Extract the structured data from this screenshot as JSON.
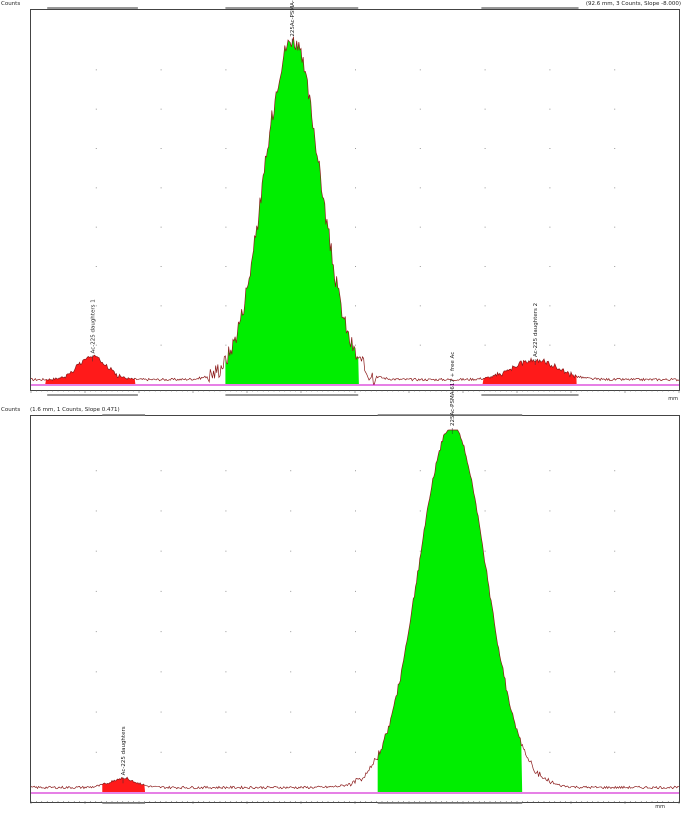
{
  "chart_data": [
    {
      "type": "area",
      "ylabel": "Counts",
      "xlabel": "mm",
      "cursor_info": "(92.6 mm, 3 Counts, Slope -8.000)",
      "xlim": [
        0,
        100
      ],
      "ylim": [
        0,
        100
      ],
      "grid": "dotted",
      "colors": {
        "trace": "#8b1a1a",
        "baseline": "#cc00cc",
        "roi_major": "#00ee00",
        "roi_minor": "#ff1a1a"
      },
      "peaks": [
        {
          "label": "Ac-225 daughters 1",
          "center": 9.5,
          "width": 2.2,
          "height": 6.5,
          "roi": [
            2.2,
            16.1
          ],
          "color": "roi_minor",
          "noise": 1.2
        },
        {
          "label": "225Ac-PSMA-617",
          "center": 40.3,
          "width": 4.3,
          "height": 96,
          "roi": [
            30.0,
            50.6
          ],
          "color": "roi_major",
          "noise": 5
        },
        {
          "label": "Ac-225 daughters 2",
          "center": 77.8,
          "width": 3.4,
          "height": 5.5,
          "roi": [
            69.7,
            84.2
          ],
          "color": "roi_minor",
          "noise": 1.2
        }
      ],
      "ruler_top": [
        [
          2.5,
          16.5
        ],
        [
          30.0,
          50.5
        ],
        [
          69.5,
          84.5
        ]
      ],
      "ruler_bottom": [
        [
          2.5,
          16.5
        ],
        [
          30.0,
          50.5
        ],
        [
          69.5,
          84.5
        ]
      ]
    },
    {
      "type": "area",
      "ylabel": "Counts",
      "xlabel": "mm",
      "cursor_info": "(1.6 mm, 1 Counts, Slope 0.471)",
      "xlim": [
        0,
        100
      ],
      "ylim": [
        0,
        100
      ],
      "grid": "dotted",
      "colors": {
        "trace": "#8b1a1a",
        "baseline": "#cc00cc",
        "roi_major": "#00ee00",
        "roi_minor": "#ff1a1a"
      },
      "peaks": [
        {
          "label": "Ac-225 daughters",
          "center": 14.2,
          "width": 2.0,
          "height": 2.5,
          "roi": [
            11.0,
            17.6
          ],
          "color": "roi_minor",
          "noise": 0.3
        },
        {
          "label": "225Ac-PSMA-617 + free Ac",
          "center": 65.0,
          "width": 5.2,
          "height": 100,
          "roi": [
            53.5,
            75.8
          ],
          "color": "roi_major",
          "noise": 1.5
        }
      ],
      "ruler_top": [
        [
          11.0,
          17.6
        ],
        [
          53.5,
          75.8
        ]
      ],
      "ruler_bottom": [
        [
          11.0,
          17.6
        ],
        [
          53.5,
          75.8
        ]
      ]
    }
  ]
}
